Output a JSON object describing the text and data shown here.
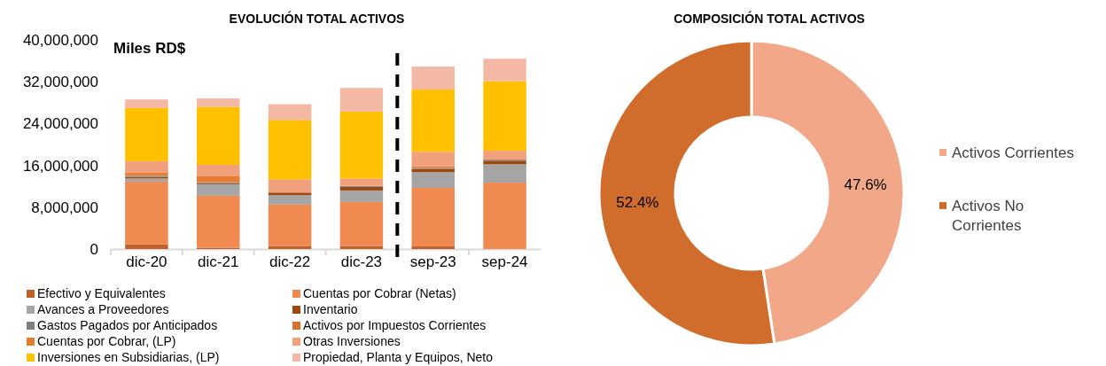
{
  "chart_data": [
    {
      "type": "bar",
      "title": "EVOLUCIÓN TOTAL ACTIVOS",
      "ylabel": "Miles RD$",
      "stacked": true,
      "legend": "bottom",
      "categories": [
        "dic-20",
        "dic-21",
        "dic-22",
        "dic-23",
        "sep-23",
        "sep-24"
      ],
      "ylim": [
        0,
        40000000
      ],
      "yticks": [
        {
          "value": 0,
          "label": "0"
        },
        {
          "value": 8000000,
          "label": "8,000,000"
        },
        {
          "value": 16000000,
          "label": "16,000,000"
        },
        {
          "value": 24000000,
          "label": "24,000,000"
        },
        {
          "value": 32000000,
          "label": "32,000,000"
        },
        {
          "value": 40000000,
          "label": "40,000,000"
        }
      ],
      "series": [
        {
          "name": "Efectivo y Equivalentes",
          "color": "#c0602a",
          "values": [
            900000,
            200000,
            600000,
            600000,
            500000,
            0
          ]
        },
        {
          "name": "Cuentas por Cobrar (Netas)",
          "color": "#f08a50",
          "values": [
            12000000,
            10000000,
            7900000,
            8400000,
            11200000,
            12700000
          ]
        },
        {
          "name": "Avances a Proveedores",
          "color": "#a5a5a5",
          "values": [
            600000,
            2200000,
            1800000,
            2200000,
            3000000,
            3500000
          ]
        },
        {
          "name": "Inventario",
          "color": "#9e480e",
          "values": [
            300000,
            200000,
            500000,
            700000,
            600000,
            700000
          ]
        },
        {
          "name": "Gastos Pagados por Anticipados",
          "color": "#7f7f7f",
          "values": [
            200000,
            200000,
            null,
            200000,
            200000,
            200000
          ]
        },
        {
          "name": "Activos por Impuestos Corrientes",
          "color": "#d86f2a",
          "values": [
            200000,
            0,
            0,
            0,
            100000,
            0
          ]
        },
        {
          "name": "Cuentas por Cobrar, (LP)",
          "color": "#e97b30",
          "values": [
            400000,
            1100000,
            0,
            0,
            200000,
            0
          ]
        },
        {
          "name": "Otras Inversiones",
          "color": "#f0a07a",
          "values": [
            2200000,
            2200000,
            2500000,
            1400000,
            2800000,
            1700000
          ]
        },
        {
          "name": "Inversiones en Subsidiarias, (LP)",
          "color": "#ffc000",
          "values": [
            10200000,
            11100000,
            11400000,
            12800000,
            11900000,
            13300000
          ]
        },
        {
          "name": "Propiedad, Planta y Equipos, Neto",
          "color": "#f4b9a5",
          "values": [
            1600000,
            1600000,
            3000000,
            4500000,
            4400000,
            4300000
          ]
        }
      ]
    },
    {
      "type": "donut",
      "title": "COMPOSICIÓN TOTAL ACTIVOS",
      "legend": "right",
      "categories": [
        "Activos Corrientes",
        "Activos No Corrientes"
      ],
      "values": [
        47.6,
        52.4
      ],
      "colors": [
        "#f2a888",
        "#d06c2c"
      ],
      "value_labels": [
        "47.6%",
        "52.4%"
      ]
    }
  ]
}
